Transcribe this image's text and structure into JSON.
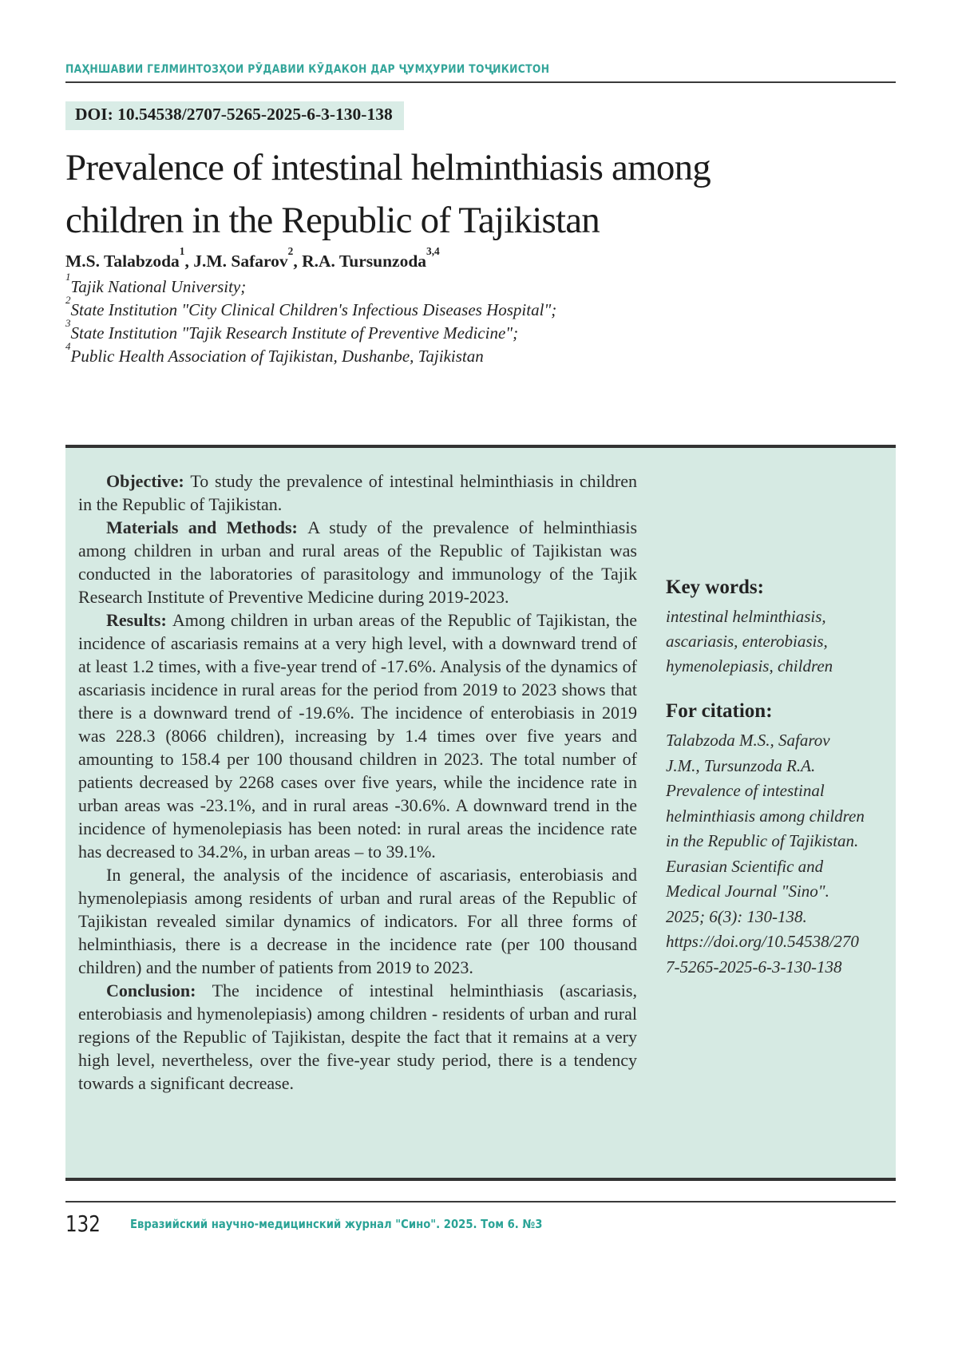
{
  "page": {
    "running_head": "ПАҲНШАВИИ ГЕЛМИНТОЗҲОИ РӮДАВИИ КӮДАКОН ДАР ҶУМҲУРИИ ТОҶИКИСТОН",
    "doi": "DOI: 10.54538/2707-5265-2025-6-3-130-138",
    "title": "Prevalence of intestinal helminthiasis among children in the Republic of Tajikistan"
  },
  "authors": [
    {
      "pre": "",
      "name": "M.S. Talabzoda",
      "sup": "1"
    },
    {
      "pre": ", ",
      "name": "J.M. Safarov",
      "sup": "2"
    },
    {
      "pre": ", ",
      "name": "R.A. Tursunzoda",
      "sup": "3,4"
    }
  ],
  "affiliations": [
    {
      "sup": "1",
      "text": "Tajik National University;"
    },
    {
      "sup": "2",
      "text": "State Institution \"City Clinical Children's Infectious Diseases Hospital\";"
    },
    {
      "sup": "3",
      "text": "State Institution \"Tajik Research Institute of Preventive Medicine\";"
    },
    {
      "sup": "4",
      "text": "Public Health Association of Tajikistan, Dushanbe, Tajikistan"
    }
  ],
  "abstract": {
    "paragraphs": [
      {
        "label": "Objective: ",
        "text": "To study the prevalence of intestinal helminthiasis in children in the Republic of Tajikistan."
      },
      {
        "label": "Materials and Methods: ",
        "text": "A study of the prevalence of helminthiasis among children in urban and rural areas of the Republic of Tajikistan was conducted in the laboratories of parasitology and immunology of the Tajik Research Institute of Preventive Medicine during 2019-2023."
      },
      {
        "label": "Results: ",
        "text": "Among children in urban areas of the Republic of Tajikistan, the incidence of ascariasis remains at a very high level, with a downward trend of at least 1.2 times, with a five-year trend of -17.6%. Analysis of the dynamics of ascariasis incidence in rural areas for the period from 2019 to 2023 shows that there is a downward trend of -19.6%. The incidence of enterobiasis in 2019 was 228.3 (8066 children), increasing by 1.4 times over five years and amounting to 158.4 per 100 thousand children in 2023. The total number of patients decreased by 2268 cases over five years, while the incidence rate in urban areas was -23.1%, and in rural areas -30.6%. A downward trend in the incidence of hymenolepiasis has been noted: in rural areas the incidence rate has decreased to 34.2%, in urban areas – to 39.1%."
      },
      {
        "label": "",
        "text": "In general, the analysis of the incidence of ascariasis, enterobiasis and hymenolepiasis among residents of urban and rural areas of the Republic of Tajikistan revealed similar dynamics of indicators. For all three forms of helminthiasis, there is a decrease in the incidence rate (per 100 thousand children) and the number of patients from 2019 to 2023."
      },
      {
        "label": "Conclusion: ",
        "text": "The incidence of intestinal helminthiasis (ascariasis, enterobiasis and hymenolepiasis) among children - residents of urban and rural regions of the Republic of Tajikistan, despite the fact that it remains at a very high level, nevertheless, over the five-year study period, there is a tendency towards a significant decrease."
      }
    ]
  },
  "sidebar": {
    "keywords_heading": "Key words:",
    "keywords": "intestinal helminthiasis, ascariasis, enterobiasis, hymenolepiasis, children",
    "citation_heading": "For citation:",
    "citation": "Talabzoda M.S., Safarov J.M., Tursunzoda R.A. Prevalence of intestinal helminthiasis among children in the Republic of Tajikistan. Eurasian Scientific and Medical Journal \"Sino\". 2025; 6(3): 130-138. https://doi.org/10.54538/2707-5265-2025-6-3-130-138"
  },
  "footer": {
    "page_number": "132",
    "journal_line": "Евразийский научно-медицинский журнал \"Сино\". 2025. Том 6. №3"
  },
  "colors": {
    "teal": "#33a59a",
    "mint_bg": "#d6eae3",
    "badge_bg": "#d9ece6",
    "rule": "#3a3a3a"
  }
}
